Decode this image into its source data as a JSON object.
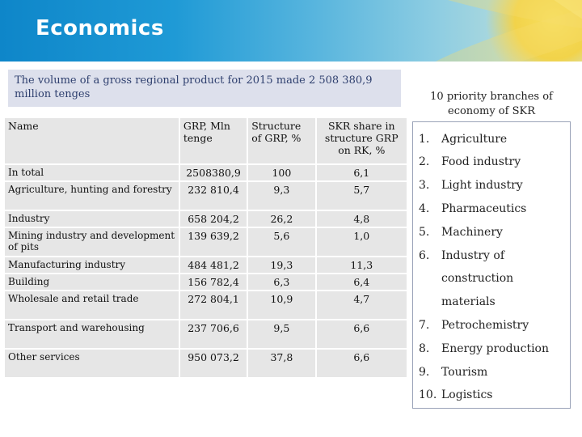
{
  "header": {
    "title": "Economics"
  },
  "intro": {
    "text": "The volume of a gross regional product for 2015 made 2 508 380,9 million tenges"
  },
  "table": {
    "columns": [
      "Name",
      "GRP, Mln tenge",
      "Structure of GRP, %",
      "SKR share in structure GRP on RK, %"
    ],
    "rows": [
      [
        "In total",
        "2508380,9",
        "100",
        "6,1"
      ],
      [
        "Agriculture, hunting and forestry",
        "232 810,4",
        "9,3",
        "5,7"
      ],
      [
        "Industry",
        "658 204,2",
        "26,2",
        "4,8"
      ],
      [
        "Mining industry and development of pits",
        "139 639,2",
        "5,6",
        "1,0"
      ],
      [
        "Manufacturing industry",
        "484 481,2",
        "19,3",
        "11,3"
      ],
      [
        "Building",
        "156 782,4",
        "6,3",
        "6,4"
      ],
      [
        "Wholesale and retail trade",
        "272 804,1",
        "10,9",
        "4,7"
      ],
      [
        "Transport and warehousing",
        "237 706,6",
        "9,5",
        "6,6"
      ],
      [
        "Other services",
        "950 073,2",
        "37,8",
        "6,6"
      ]
    ]
  },
  "sidebar": {
    "title": "10 priority branches of economy of SKR",
    "items": [
      {
        "num": "1.",
        "label": "Agriculture"
      },
      {
        "num": "2.",
        "label": "Food industry"
      },
      {
        "num": "3.",
        "label": "Light industry"
      },
      {
        "num": "4.",
        "label": "Pharmaceutics"
      },
      {
        "num": "5.",
        "label": "Machinery"
      },
      {
        "num": "6.",
        "label": "Industry of"
      },
      {
        "num": "",
        "label": "construction"
      },
      {
        "num": "",
        "label": "materials"
      },
      {
        "num": "7.",
        "label": "Petrochemistry"
      },
      {
        "num": "8.",
        "label": "Energy production"
      },
      {
        "num": "9.",
        "label": "Tourism"
      },
      {
        "num": "10.",
        "label": "Logistics"
      }
    ]
  }
}
